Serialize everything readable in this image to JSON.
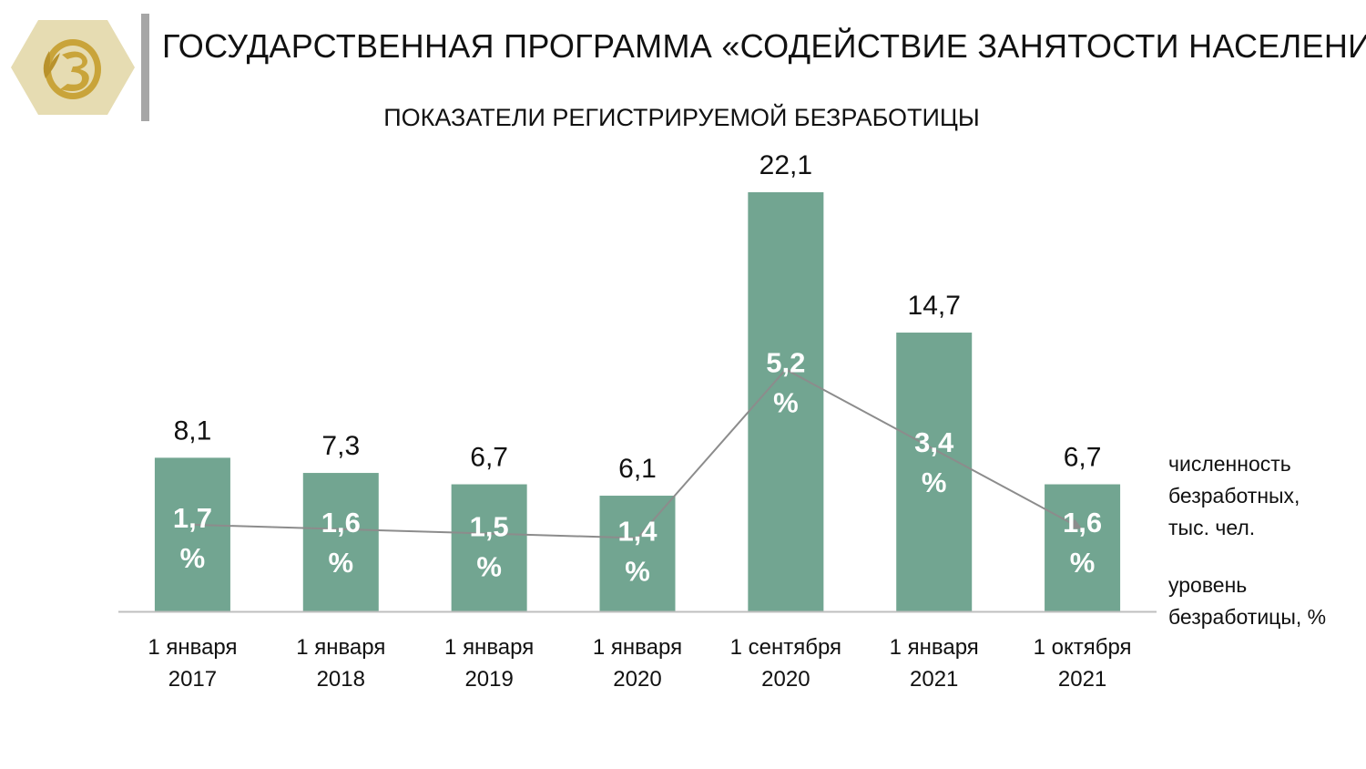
{
  "header": {
    "title": "ГОСУДАРСТВЕННАЯ ПРОГРАММА «СОДЕЙСТВИЕ ЗАНЯТОСТИ НАСЕЛЕНИЯ»",
    "logo_icon": "belarus-emblem-icon"
  },
  "colors": {
    "bar": "#72a591",
    "line": "#8c8c8c",
    "axis": "#bfbfbf",
    "logo_hex": "#e6dcb2",
    "logo_gold": "#c9a43a"
  },
  "legend": {
    "count_label": "численность\nбезработных,\nтыс. чел.",
    "rate_label": "уровень\nбезработицы, %"
  },
  "chart_data": {
    "type": "bar",
    "title": "ПОКАЗАТЕЛИ РЕГИСТРИРУЕМОЙ БЕЗРАБОТИЦЫ",
    "categories": [
      [
        "1 января",
        "2017"
      ],
      [
        "1 января",
        "2018"
      ],
      [
        "1 января",
        "2019"
      ],
      [
        "1 января",
        "2020"
      ],
      [
        "1 сентября",
        "2020"
      ],
      [
        "1 января",
        "2021"
      ],
      [
        "1 октября",
        "2021"
      ]
    ],
    "series": [
      {
        "name": "численность безработных, тыс. чел.",
        "type": "bar",
        "values": [
          8.1,
          7.3,
          6.7,
          6.1,
          22.1,
          14.7,
          6.7
        ],
        "labels": [
          "8,1",
          "7,3",
          "6,7",
          "6,1",
          "22,1",
          "14,7",
          "6,7"
        ]
      },
      {
        "name": "уровень безработицы, %",
        "type": "line",
        "values": [
          1.7,
          1.6,
          1.5,
          1.4,
          5.2,
          3.4,
          1.6
        ],
        "labels": [
          [
            "1,7",
            "%"
          ],
          [
            "1,6",
            "%"
          ],
          [
            "1,5",
            "%"
          ],
          [
            "1,4",
            "%"
          ],
          [
            "5,2",
            "%"
          ],
          [
            "3,4",
            "%"
          ],
          [
            "1,6",
            "%"
          ]
        ]
      }
    ],
    "grid": false,
    "legend_position": "right"
  }
}
